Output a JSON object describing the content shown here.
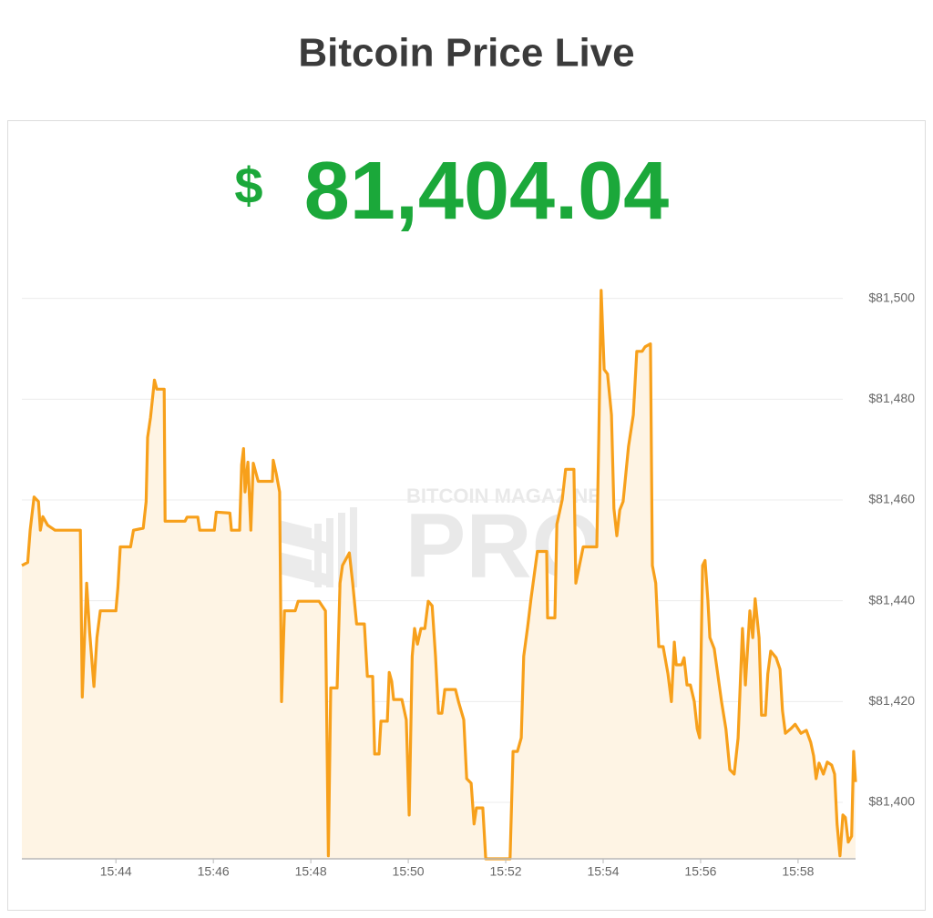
{
  "chart_data": {
    "type": "area-line",
    "title": "Bitcoin Price Live",
    "currency": "$",
    "price": "81,404.04",
    "watermark": {
      "top": "BITCOIN MAGAZINE",
      "main": "PRO"
    },
    "color": "#f7a01b",
    "area_color": "#fef4e4",
    "grid": true,
    "xlim": [
      942.07,
      959.18
    ],
    "ylim": [
      81388.8,
      81505
    ],
    "xticks": [
      {
        "value": 944,
        "label": "15:44"
      },
      {
        "value": 946,
        "label": "15:46"
      },
      {
        "value": 948,
        "label": "15:48"
      },
      {
        "value": 950,
        "label": "15:50"
      },
      {
        "value": 952,
        "label": "15:52"
      },
      {
        "value": 954,
        "label": "15:54"
      },
      {
        "value": 956,
        "label": "15:56"
      },
      {
        "value": 958,
        "label": "15:58"
      }
    ],
    "yticks": [
      {
        "value": 81400,
        "label": "$81,400"
      },
      {
        "value": 81420,
        "label": "$81,420"
      },
      {
        "value": 81440,
        "label": "$81,440"
      },
      {
        "value": 81460,
        "label": "$81,460"
      },
      {
        "value": 81480,
        "label": "$81,480"
      },
      {
        "value": 81500,
        "label": "$81,500"
      }
    ],
    "x": [
      942.07,
      942.19,
      942.24,
      942.32,
      942.41,
      942.45,
      942.5,
      942.6,
      942.75,
      943.27,
      943.31,
      943.4,
      943.46,
      943.55,
      943.61,
      943.68,
      944.0,
      944.04,
      944.09,
      944.3,
      944.36,
      944.56,
      944.62,
      944.65,
      944.71,
      944.79,
      944.84,
      944.99,
      945.01,
      945.42,
      945.46,
      945.68,
      945.72,
      946.02,
      946.06,
      946.34,
      946.37,
      946.54,
      946.58,
      946.62,
      946.65,
      946.71,
      946.77,
      946.82,
      946.92,
      947.21,
      947.23,
      947.29,
      947.36,
      947.4,
      947.46,
      947.68,
      947.74,
      948.17,
      948.3,
      948.36,
      948.41,
      948.54,
      948.6,
      948.65,
      948.79,
      948.86,
      948.94,
      949.1,
      949.16,
      949.27,
      949.31,
      949.4,
      949.44,
      949.57,
      949.61,
      949.66,
      949.7,
      949.87,
      949.96,
      950.02,
      950.08,
      950.13,
      950.19,
      950.26,
      950.34,
      950.41,
      950.49,
      950.56,
      950.62,
      950.69,
      950.75,
      950.97,
      951.03,
      951.14,
      951.2,
      951.29,
      951.35,
      951.4,
      951.53,
      951.59,
      952.09,
      952.15,
      952.24,
      952.32,
      952.37,
      952.45,
      952.52,
      952.65,
      952.84,
      952.86,
      953.01,
      953.05,
      953.16,
      953.23,
      953.4,
      953.44,
      953.59,
      953.87,
      953.91,
      953.96,
      954.02,
      954.09,
      954.17,
      954.22,
      954.28,
      954.34,
      954.41,
      954.52,
      954.62,
      954.69,
      954.8,
      954.86,
      954.97,
      955.01,
      955.08,
      955.14,
      955.23,
      955.33,
      955.4,
      955.46,
      955.5,
      955.61,
      955.66,
      955.72,
      955.79,
      955.87,
      955.93,
      955.98,
      956.04,
      956.09,
      956.15,
      956.19,
      956.28,
      956.43,
      956.52,
      956.6,
      956.69,
      956.77,
      956.86,
      956.92,
      957.01,
      957.07,
      957.12,
      957.2,
      957.25,
      957.33,
      957.38,
      957.44,
      957.55,
      957.63,
      957.68,
      957.74,
      957.85,
      957.94,
      958.06,
      958.17,
      958.26,
      958.32,
      958.37,
      958.43,
      958.52,
      958.6,
      958.69,
      958.75,
      958.8,
      958.86,
      958.92,
      958.97,
      959.03,
      959.1,
      959.14,
      959.18
    ],
    "values": [
      81447,
      81447.6,
      81454,
      81460.6,
      81459.7,
      81454,
      81456.7,
      81455,
      81454,
      81454,
      81420.9,
      81443.5,
      81434,
      81423,
      81432.7,
      81438,
      81438,
      81442.6,
      81450.7,
      81450.7,
      81454,
      81454.4,
      81459.7,
      81472.4,
      81476.4,
      81483.8,
      81482,
      81482,
      81455.8,
      81455.8,
      81456.6,
      81456.6,
      81454,
      81454,
      81457.6,
      81457.4,
      81454,
      81454,
      81467,
      81470.2,
      81461.6,
      81467.5,
      81454,
      81467.3,
      81463.7,
      81463.7,
      81467.9,
      81465.2,
      81461.6,
      81420,
      81438,
      81438,
      81439.9,
      81439.9,
      81438,
      81389.4,
      81422.7,
      81422.7,
      81443.5,
      81447,
      81449.5,
      81443.5,
      81435.4,
      81435.4,
      81425,
      81425,
      81409.6,
      81409.6,
      81416.1,
      81416.1,
      81425.8,
      81424,
      81420.4,
      81420.4,
      81416.4,
      81397.5,
      81429,
      81434.5,
      81431.4,
      81434.5,
      81434.5,
      81439.9,
      81439,
      81429,
      81417.7,
      81417.7,
      81422.4,
      81422.4,
      81420,
      81416.4,
      81404.7,
      81403.8,
      81395.7,
      81398.9,
      81398.9,
      81388.8,
      81388.8,
      81410.1,
      81410.1,
      81412.8,
      81429,
      81434.8,
      81440.4,
      81449.8,
      81449.8,
      81436.6,
      81436.6,
      81455.2,
      81460.1,
      81466.1,
      81466.1,
      81443.5,
      81450.7,
      81450.7,
      81472.4,
      81501.6,
      81485.9,
      81485,
      81476.9,
      81458.3,
      81452.9,
      81458,
      81459.7,
      81470.6,
      81476.9,
      81489.5,
      81489.5,
      81490.4,
      81491,
      81447,
      81443.5,
      81430.9,
      81430.9,
      81425.5,
      81420,
      81431.8,
      81427.3,
      81427.3,
      81428.7,
      81423.3,
      81423.3,
      81420,
      81414.6,
      81412.8,
      81447,
      81448,
      81439.9,
      81432.7,
      81430.5,
      81420,
      81414.6,
      81406.5,
      81405.6,
      81412.8,
      81434.5,
      81423.3,
      81438,
      81432.7,
      81440.4,
      81432.7,
      81417.3,
      81417.3,
      81425.5,
      81430,
      81428.7,
      81426.4,
      81418.2,
      81413.7,
      81414.6,
      81415.5,
      81413.7,
      81414.3,
      81411.9,
      81409.2,
      81404.7,
      81407.8,
      81405.6,
      81408,
      81407.4,
      81405.6,
      81395.7,
      81389.4,
      81397.5,
      81397,
      81392.1,
      81393.3,
      81410.1,
      81404.04
    ]
  }
}
